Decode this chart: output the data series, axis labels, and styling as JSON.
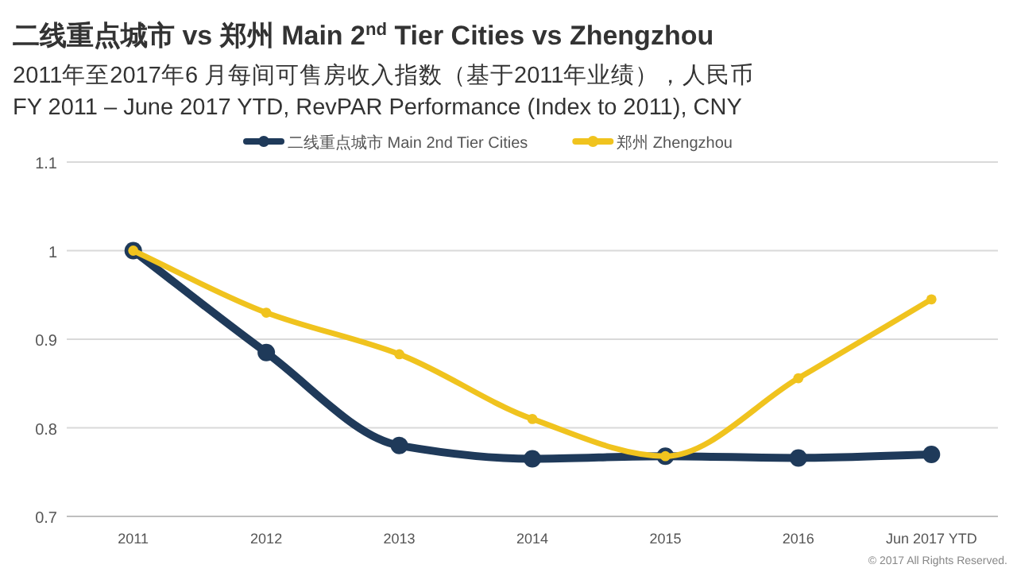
{
  "chart_data": {
    "type": "line",
    "title": "二线重点城市 vs 郑州  Main 2$^{nd}$ Tier Cities vs Zhengzhou",
    "subtitle": "2011年至2017年6 月每间可售房收入指数（基于2011年业绩），人民币\nFY 2011 – June 2017 YTD, RevPAR Performance (Index to 2011), CNY",
    "categories": [
      "2011",
      "2012",
      "2013",
      "2014",
      "2015",
      "2016",
      "Jun 2017 YTD"
    ],
    "series": [
      {
        "name": "二线重点城市 Main 2nd Tier Cities",
        "color": "#1f3a5a",
        "values": [
          1.0,
          0.885,
          0.78,
          0.765,
          0.768,
          0.766,
          0.77
        ]
      },
      {
        "name": "郑州 Zhengzhou",
        "color": "#f0c31e",
        "values": [
          1.0,
          0.93,
          0.883,
          0.81,
          0.768,
          0.856,
          0.945
        ]
      }
    ],
    "ylim": [
      0.7,
      1.1
    ],
    "yticks": [
      0.7,
      0.8,
      0.9,
      {
        "value": 1,
        "label": "1"
      },
      1.1
    ],
    "grid": "y",
    "legend": "top",
    "marker": "circle",
    "line_style": "solid",
    "annotations": [
      "© 2017 All Rights Reserved."
    ]
  }
}
